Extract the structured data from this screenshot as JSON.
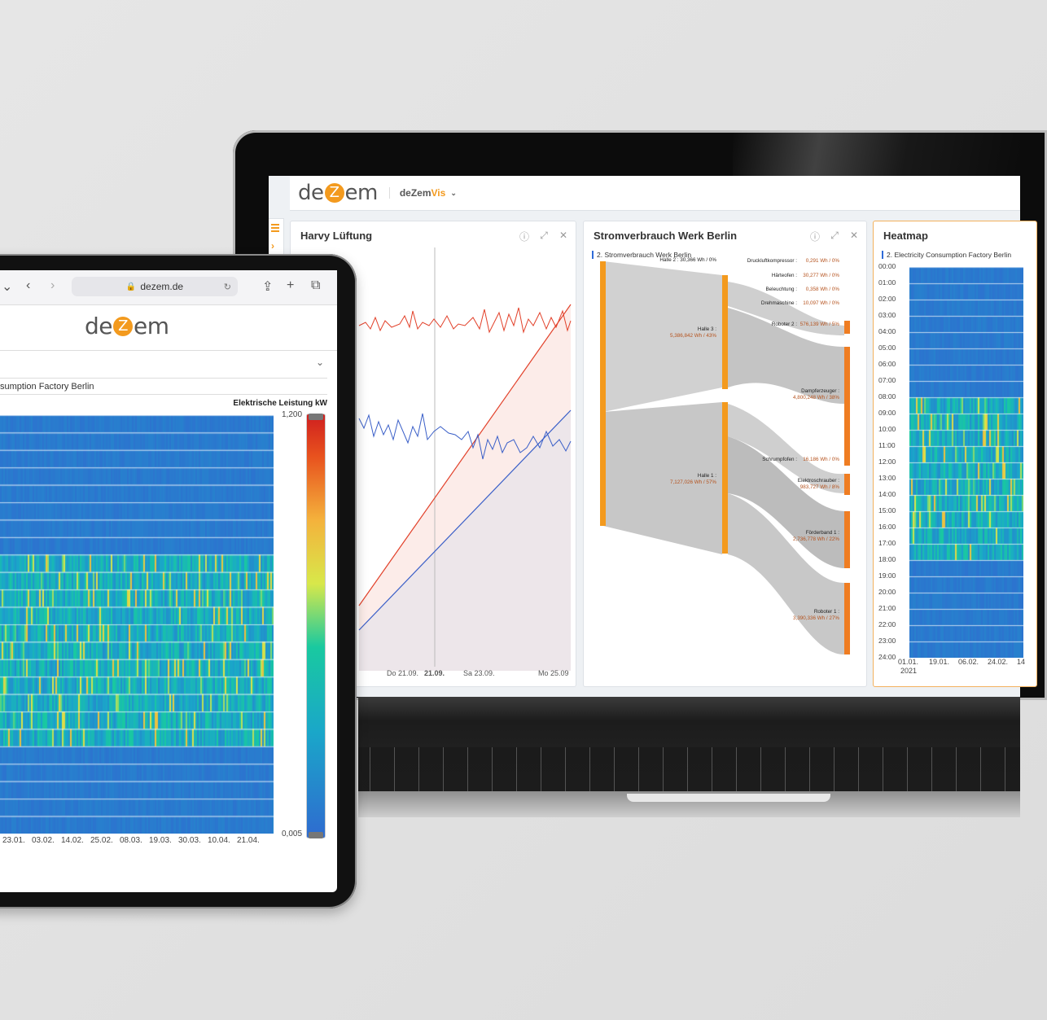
{
  "laptop": {
    "app_logo": {
      "pre": "de",
      "z": "Z",
      "post": "em"
    },
    "app_switcher": {
      "brand": "deZem",
      "suffix": "Vis"
    },
    "panels": [
      {
        "title": "Harvy Lüftung",
        "x_ticks": [
          "Do 21.09.",
          "21.09.",
          "Sa 23.09.",
          "Mo 25.09"
        ]
      },
      {
        "title": "Stromverbrauch Werk Berlin",
        "subtitle": "2. Stromverbrauch Werk Berlin",
        "nodes": [
          {
            "label": "Halle 2 : 30,366 Wh / 0%"
          },
          {
            "label": "Halle 3 :",
            "value": "5,386,842 Wh / 43%"
          },
          {
            "label": "Halle 1 :",
            "value": "7,127,026 Wh / 57%"
          },
          {
            "label": "Druckluftkompressor :",
            "value": "0,291 Wh / 0%"
          },
          {
            "label": "Härteofen :",
            "value": "30,277 Wh / 0%"
          },
          {
            "label": "Beleuchtung :",
            "value": "0,358 Wh / 0%"
          },
          {
            "label": "Drehmaschine :",
            "value": "10,097 Wh / 0%"
          },
          {
            "label": "Roboter 2 :",
            "value": "576,139 Wh / 5%"
          },
          {
            "label": "Dampferzeuger :",
            "value": "4,800,248 Wh / 38%"
          },
          {
            "label": "Schrumpfofen :",
            "value": "16,186 Wh / 0%"
          },
          {
            "label": "Elektroschrauber :",
            "value": "983,727 Wh / 8%"
          },
          {
            "label": "Förderband 1 :",
            "value": "2,736,778 Wh / 22%"
          },
          {
            "label": "Roboter 1 :",
            "value": "3,390,336 Wh / 27%"
          }
        ]
      },
      {
        "title": "Heatmap",
        "subtitle": "2. Electricity Consumption Factory Berlin",
        "hours": [
          "00:00",
          "01:00",
          "02:00",
          "03:00",
          "04:00",
          "05:00",
          "06:00",
          "07:00",
          "08:00",
          "09:00",
          "10:00",
          "11:00",
          "12:00",
          "13:00",
          "14:00",
          "15:00",
          "16:00",
          "17:00",
          "18:00",
          "19:00",
          "20:00",
          "21:00",
          "22:00",
          "23:00",
          "24:00"
        ],
        "x_ticks": [
          "01.01.",
          "19.01.",
          "06.02.",
          "24.02.",
          "14"
        ],
        "x_year": "2021"
      }
    ]
  },
  "tablet": {
    "url": "dezem.de",
    "subtitle": "sumption Factory Berlin",
    "unit_label": "Elektrische Leistung",
    "unit": "kW",
    "scale_max": "1,200",
    "scale_min": "0,005",
    "x_ticks": [
      "23.01.",
      "03.02.",
      "14.02.",
      "25.02.",
      "08.03.",
      "19.03.",
      "30.03.",
      "10.04.",
      "21.04."
    ]
  },
  "colors": {
    "accent": "#f39a1e",
    "link_blue": "#2f6bd8",
    "line_red": "#e2412a",
    "line_blue": "#3a5fc8",
    "sankey_node": "#f39a1e"
  }
}
